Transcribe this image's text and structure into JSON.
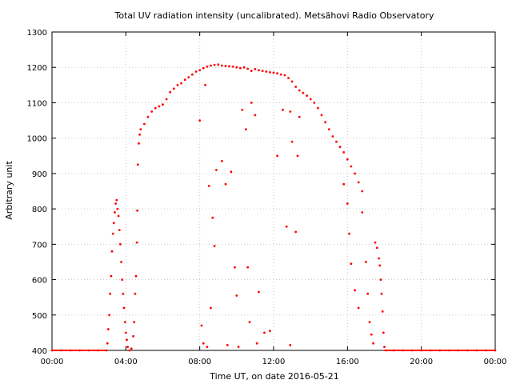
{
  "chart_data": {
    "type": "scatter",
    "title": "Total UV radiation intensity (uncalibrated). Metsähovi Radio Observatory",
    "xlabel": "Time UT, on date 2016-05-21",
    "ylabel": "Arbitrary unit",
    "xlim": [
      0,
      24
    ],
    "ylim": [
      400,
      1300
    ],
    "x_ticks": [
      0,
      4,
      8,
      12,
      16,
      20,
      24
    ],
    "x_tick_labels": [
      "00:00",
      "04:00",
      "08:00",
      "12:00",
      "16:00",
      "20:00",
      "00:00"
    ],
    "y_ticks": [
      400,
      500,
      600,
      700,
      800,
      900,
      1000,
      1100,
      1200,
      1300
    ],
    "grid": true,
    "colors": {
      "points": "#ff0000",
      "grid": "#c8c8c8",
      "axis": "#000000"
    },
    "series": [
      {
        "points": [
          [
            0.0,
            400
          ],
          [
            0.5,
            400
          ],
          [
            1.0,
            400
          ],
          [
            1.5,
            400
          ],
          [
            2.0,
            400
          ],
          [
            2.5,
            400
          ],
          [
            2.95,
            400
          ],
          [
            3.0,
            420
          ],
          [
            3.05,
            460
          ],
          [
            3.1,
            500
          ],
          [
            3.15,
            560
          ],
          [
            3.2,
            610
          ],
          [
            3.25,
            680
          ],
          [
            3.3,
            730
          ],
          [
            3.35,
            760
          ],
          [
            3.4,
            790
          ],
          [
            3.45,
            815
          ],
          [
            3.5,
            825
          ],
          [
            3.55,
            800
          ],
          [
            3.6,
            780
          ],
          [
            3.65,
            740
          ],
          [
            3.7,
            700
          ],
          [
            3.75,
            650
          ],
          [
            3.8,
            600
          ],
          [
            3.85,
            560
          ],
          [
            3.9,
            520
          ],
          [
            3.95,
            480
          ],
          [
            4.0,
            450
          ],
          [
            4.05,
            430
          ],
          [
            4.1,
            410
          ],
          [
            4.2,
            400
          ],
          [
            4.3,
            405
          ],
          [
            4.4,
            440
          ],
          [
            4.45,
            480
          ],
          [
            4.5,
            560
          ],
          [
            4.55,
            610
          ],
          [
            4.6,
            705
          ],
          [
            4.62,
            795
          ],
          [
            4.65,
            925
          ],
          [
            4.7,
            985
          ],
          [
            4.75,
            1010
          ],
          [
            4.8,
            1025
          ],
          [
            5.0,
            1040
          ],
          [
            5.2,
            1060
          ],
          [
            5.4,
            1075
          ],
          [
            5.6,
            1085
          ],
          [
            5.8,
            1090
          ],
          [
            6.0,
            1095
          ],
          [
            6.2,
            1110
          ],
          [
            6.4,
            1130
          ],
          [
            6.6,
            1140
          ],
          [
            6.8,
            1150
          ],
          [
            7.0,
            1155
          ],
          [
            7.2,
            1165
          ],
          [
            7.4,
            1172
          ],
          [
            7.6,
            1180
          ],
          [
            7.8,
            1188
          ],
          [
            8.0,
            1192
          ],
          [
            8.2,
            1198
          ],
          [
            8.4,
            1202
          ],
          [
            8.6,
            1205
          ],
          [
            8.8,
            1207
          ],
          [
            9.0,
            1208
          ],
          [
            9.2,
            1205
          ],
          [
            9.4,
            1204
          ],
          [
            9.6,
            1203
          ],
          [
            9.8,
            1202
          ],
          [
            10.0,
            1200
          ],
          [
            10.2,
            1198
          ],
          [
            10.4,
            1200
          ],
          [
            10.6,
            1196
          ],
          [
            10.8,
            1190
          ],
          [
            11.0,
            1195
          ],
          [
            11.2,
            1192
          ],
          [
            11.4,
            1190
          ],
          [
            11.6,
            1188
          ],
          [
            11.8,
            1186
          ],
          [
            12.0,
            1185
          ],
          [
            12.2,
            1183
          ],
          [
            12.4,
            1180
          ],
          [
            12.6,
            1178
          ],
          [
            12.8,
            1170
          ],
          [
            13.0,
            1160
          ],
          [
            13.2,
            1145
          ],
          [
            13.4,
            1135
          ],
          [
            13.6,
            1128
          ],
          [
            13.8,
            1120
          ],
          [
            14.0,
            1110
          ],
          [
            14.2,
            1100
          ],
          [
            14.4,
            1085
          ],
          [
            14.6,
            1065
          ],
          [
            14.8,
            1045
          ],
          [
            15.0,
            1025
          ],
          [
            15.2,
            1005
          ],
          [
            15.4,
            990
          ],
          [
            15.6,
            975
          ],
          [
            15.8,
            960
          ],
          [
            16.0,
            940
          ],
          [
            16.2,
            920
          ],
          [
            16.4,
            900
          ],
          [
            16.6,
            875
          ],
          [
            16.8,
            850
          ],
          [
            8.0,
            1050
          ],
          [
            8.3,
            1150
          ],
          [
            8.5,
            865
          ],
          [
            8.6,
            520
          ],
          [
            8.7,
            775
          ],
          [
            8.8,
            695
          ],
          [
            8.9,
            910
          ],
          [
            9.2,
            935
          ],
          [
            9.4,
            870
          ],
          [
            9.7,
            905
          ],
          [
            9.9,
            635
          ],
          [
            10.0,
            555
          ],
          [
            10.3,
            1080
          ],
          [
            10.5,
            1025
          ],
          [
            10.6,
            635
          ],
          [
            10.8,
            1100
          ],
          [
            11.0,
            1065
          ],
          [
            11.2,
            565
          ],
          [
            11.5,
            450
          ],
          [
            12.2,
            950
          ],
          [
            12.5,
            1080
          ],
          [
            12.7,
            750
          ],
          [
            12.9,
            1075
          ],
          [
            13.0,
            990
          ],
          [
            13.2,
            735
          ],
          [
            13.3,
            950
          ],
          [
            13.4,
            1060
          ],
          [
            8.1,
            470
          ],
          [
            8.2,
            420
          ],
          [
            8.4,
            410
          ],
          [
            9.5,
            415
          ],
          [
            10.1,
            410
          ],
          [
            10.7,
            480
          ],
          [
            11.1,
            420
          ],
          [
            11.8,
            455
          ],
          [
            12.9,
            415
          ],
          [
            15.8,
            870
          ],
          [
            16.0,
            815
          ],
          [
            16.1,
            730
          ],
          [
            16.2,
            645
          ],
          [
            16.4,
            570
          ],
          [
            16.6,
            520
          ],
          [
            16.8,
            790
          ],
          [
            17.0,
            650
          ],
          [
            17.1,
            560
          ],
          [
            17.2,
            480
          ],
          [
            17.3,
            445
          ],
          [
            17.4,
            420
          ],
          [
            17.5,
            705
          ],
          [
            17.6,
            690
          ],
          [
            17.7,
            660
          ],
          [
            17.75,
            640
          ],
          [
            17.8,
            600
          ],
          [
            17.85,
            560
          ],
          [
            17.9,
            510
          ],
          [
            17.95,
            450
          ],
          [
            18.0,
            410
          ],
          [
            18.1,
            400
          ],
          [
            18.5,
            400
          ],
          [
            19.0,
            400
          ],
          [
            19.5,
            400
          ],
          [
            20.0,
            400
          ],
          [
            20.5,
            400
          ],
          [
            21.0,
            400
          ],
          [
            21.5,
            400
          ],
          [
            22.0,
            400
          ],
          [
            22.5,
            400
          ],
          [
            23.0,
            400
          ],
          [
            23.5,
            400
          ],
          [
            24.0,
            400
          ]
        ]
      }
    ]
  }
}
